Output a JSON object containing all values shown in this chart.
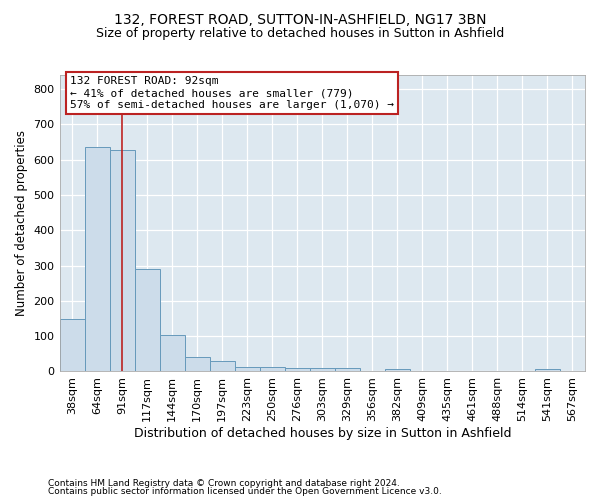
{
  "title": "132, FOREST ROAD, SUTTON-IN-ASHFIELD, NG17 3BN",
  "subtitle": "Size of property relative to detached houses in Sutton in Ashfield",
  "xlabel": "Distribution of detached houses by size in Sutton in Ashfield",
  "ylabel": "Number of detached properties",
  "footnote1": "Contains HM Land Registry data © Crown copyright and database right 2024.",
  "footnote2": "Contains public sector information licensed under the Open Government Licence v3.0.",
  "bar_labels": [
    "38sqm",
    "64sqm",
    "91sqm",
    "117sqm",
    "144sqm",
    "170sqm",
    "197sqm",
    "223sqm",
    "250sqm",
    "276sqm",
    "303sqm",
    "329sqm",
    "356sqm",
    "382sqm",
    "409sqm",
    "435sqm",
    "461sqm",
    "488sqm",
    "514sqm",
    "541sqm",
    "567sqm"
  ],
  "bar_values": [
    150,
    635,
    628,
    290,
    103,
    42,
    29,
    12,
    12,
    10,
    10,
    10,
    0,
    8,
    0,
    0,
    0,
    0,
    0,
    8,
    0
  ],
  "bar_color": "#ccdcea",
  "bar_edge_color": "#6699bb",
  "figure_bg": "#ffffff",
  "axes_bg": "#dde8f0",
  "grid_color": "#ffffff",
  "annotation_line1": "132 FOREST ROAD: 92sqm",
  "annotation_line2": "← 41% of detached houses are smaller (779)",
  "annotation_line3": "57% of semi-detached houses are larger (1,070) →",
  "vline_color": "#bb2222",
  "annotation_box_edge": "#bb2222",
  "annotation_box_face": "#ffffff",
  "ylim": [
    0,
    840
  ],
  "yticks": [
    0,
    100,
    200,
    300,
    400,
    500,
    600,
    700,
    800
  ],
  "vline_x": 2.0,
  "title_fontsize": 10,
  "subtitle_fontsize": 9,
  "xlabel_fontsize": 9,
  "ylabel_fontsize": 8.5,
  "tick_fontsize": 8,
  "annot_fontsize": 8,
  "footnote_fontsize": 6.5
}
